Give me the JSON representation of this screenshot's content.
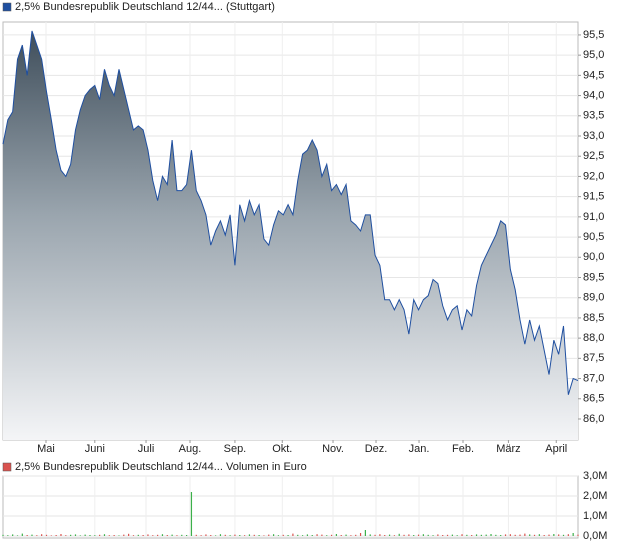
{
  "chart_data": [
    {
      "type": "area",
      "title": "2,5% Bundesrepublik Deutschland 12/44... (Stuttgart)",
      "color": "#1f4fa0",
      "grid": true,
      "values": [
        92.8,
        93.4,
        93.6,
        94.9,
        95.25,
        94.5,
        95.6,
        95.25,
        94.9,
        94.1,
        93.4,
        92.65,
        92.15,
        92.0,
        92.3,
        93.15,
        93.65,
        94.0,
        94.15,
        94.25,
        93.9,
        94.65,
        94.25,
        94.0,
        94.65,
        94.15,
        93.65,
        93.15,
        93.25,
        93.15,
        92.65,
        91.9,
        91.4,
        92.0,
        91.8,
        92.9,
        91.65,
        91.65,
        91.8,
        92.65,
        91.65,
        91.4,
        91.05,
        90.3,
        90.65,
        90.9,
        90.55,
        91.05,
        89.8,
        91.3,
        90.9,
        91.4,
        91.05,
        91.3,
        90.45,
        90.3,
        90.8,
        91.15,
        91.05,
        91.3,
        91.05,
        91.9,
        92.55,
        92.65,
        92.9,
        92.65,
        92.0,
        92.3,
        91.65,
        91.8,
        91.55,
        91.8,
        90.9,
        90.8,
        90.65,
        91.05,
        91.05,
        90.05,
        89.8,
        88.95,
        88.95,
        88.7,
        88.95,
        88.7,
        88.1,
        88.95,
        88.7,
        88.95,
        89.05,
        89.45,
        89.35,
        88.8,
        88.45,
        88.7,
        88.8,
        88.2,
        88.7,
        88.55,
        89.3,
        89.8,
        90.05,
        90.3,
        90.55,
        90.9,
        90.8,
        89.7,
        89.2,
        88.45,
        87.85,
        88.45,
        87.95,
        88.3,
        87.7,
        87.1,
        87.95,
        87.6,
        88.3,
        86.6,
        87.0,
        86.95
      ],
      "ylim": [
        85.48,
        95.82
      ],
      "yticks": [
        {
          "value": 86.0,
          "label": "86,0"
        },
        {
          "value": 86.5,
          "label": "86,5"
        },
        {
          "value": 87.0,
          "label": "87,0"
        },
        {
          "value": 87.5,
          "label": "87,5"
        },
        {
          "value": 88.0,
          "label": "88,0"
        },
        {
          "value": 88.5,
          "label": "88,5"
        },
        {
          "value": 89.0,
          "label": "89,0"
        },
        {
          "value": 89.5,
          "label": "89,5"
        },
        {
          "value": 90.0,
          "label": "90,0"
        },
        {
          "value": 90.5,
          "label": "90,5"
        },
        {
          "value": 91.0,
          "label": "91,0"
        },
        {
          "value": 91.5,
          "label": "91,5"
        },
        {
          "value": 92.0,
          "label": "92,0"
        },
        {
          "value": 92.5,
          "label": "92,5"
        },
        {
          "value": 93.0,
          "label": "93,0"
        },
        {
          "value": 93.5,
          "label": "93,5"
        },
        {
          "value": 94.0,
          "label": "94,0"
        },
        {
          "value": 94.5,
          "label": "94,5"
        },
        {
          "value": 95.0,
          "label": "95,0"
        },
        {
          "value": 95.5,
          "label": "95,5"
        }
      ],
      "xticks": [
        {
          "value": 8.9,
          "label": "Mai"
        },
        {
          "value": 19,
          "label": "Juni"
        },
        {
          "value": 29.6,
          "label": "Juli"
        },
        {
          "value": 38.7,
          "label": "Aug."
        },
        {
          "value": 48,
          "label": "Sep."
        },
        {
          "value": 57.8,
          "label": "Okt."
        },
        {
          "value": 68.3,
          "label": "Nov."
        },
        {
          "value": 77.2,
          "label": "Dez."
        },
        {
          "value": 86.1,
          "label": "Jan."
        },
        {
          "value": 95.2,
          "label": "Feb."
        },
        {
          "value": 104.6,
          "label": "März"
        },
        {
          "value": 114.5,
          "label": "April"
        }
      ]
    },
    {
      "type": "bar",
      "title": "2,5% Bundesrepublik Deutschland 12/44... Volumen in Euro",
      "color": "#d9534f",
      "up_color": "#3cb04a",
      "down_color": "#d9534f",
      "values": [
        60000,
        40000,
        80000,
        30000,
        120000,
        50000,
        70000,
        40000,
        90000,
        60000,
        30000,
        50000,
        100000,
        40000,
        60000,
        80000,
        30000,
        70000,
        50000,
        40000,
        60000,
        90000,
        40000,
        50000,
        30000,
        70000,
        110000,
        40000,
        60000,
        50000,
        80000,
        40000,
        60000,
        90000,
        50000,
        70000,
        40000,
        60000,
        50000,
        2200000,
        60000,
        40000,
        80000,
        50000,
        30000,
        90000,
        60000,
        40000,
        70000,
        50000,
        40000,
        80000,
        60000,
        50000,
        30000,
        70000,
        90000,
        40000,
        60000,
        50000,
        120000,
        60000,
        40000,
        80000,
        50000,
        90000,
        70000,
        40000,
        60000,
        100000,
        50000,
        70000,
        40000,
        60000,
        150000,
        300000,
        80000,
        60000,
        90000,
        50000,
        70000,
        40000,
        110000,
        60000,
        80000,
        50000,
        70000,
        90000,
        60000,
        40000,
        80000,
        50000,
        60000,
        70000,
        40000,
        90000,
        60000,
        50000,
        80000,
        60000,
        70000,
        100000,
        60000,
        50000,
        80000,
        90000,
        60000,
        70000,
        120000,
        80000,
        60000,
        90000,
        50000,
        70000,
        100000,
        80000,
        60000,
        90000,
        150000,
        70000
      ],
      "ylim": [
        0,
        3000000
      ],
      "yticks": [
        {
          "value": 0,
          "label": "0,0M"
        },
        {
          "value": 1000000,
          "label": "1,0M"
        },
        {
          "value": 2000000,
          "label": "2,0M"
        },
        {
          "value": 3000000,
          "label": "3,0M"
        }
      ]
    }
  ]
}
